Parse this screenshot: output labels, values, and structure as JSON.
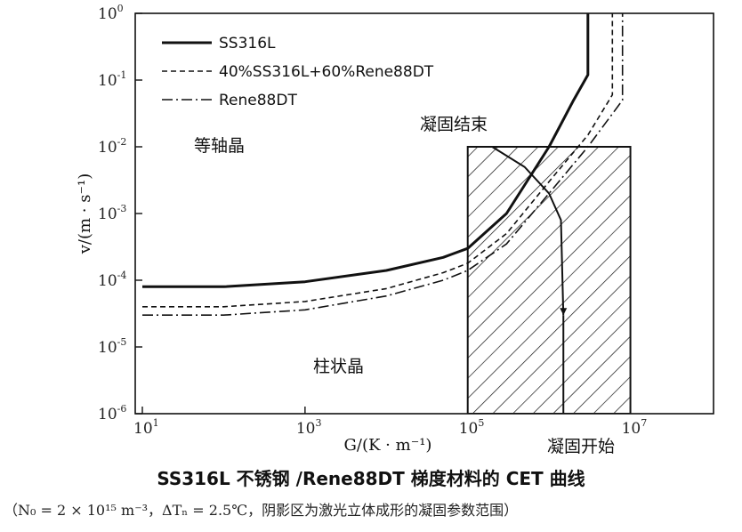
{
  "chart_data": {
    "type": "line",
    "x_scale": "log",
    "y_scale": "log",
    "xlim": [
      10,
      100000000.0
    ],
    "ylim": [
      1e-06,
      1
    ],
    "x_ticks": [
      {
        "value": 10,
        "base": "10",
        "exp": "1"
      },
      {
        "value": 1000,
        "base": "10",
        "exp": "3"
      },
      {
        "value": 100000,
        "base": "10",
        "exp": "5"
      },
      {
        "value": 10000000,
        "base": "10",
        "exp": "7"
      }
    ],
    "y_ticks": [
      {
        "value": 1e-06,
        "base": "10",
        "exp": "-6"
      },
      {
        "value": 1e-05,
        "base": "10",
        "exp": "-5"
      },
      {
        "value": 0.0001,
        "base": "10",
        "exp": "-4"
      },
      {
        "value": 0.001,
        "base": "10",
        "exp": "-3"
      },
      {
        "value": 0.01,
        "base": "10",
        "exp": "-2"
      },
      {
        "value": 0.1,
        "base": "10",
        "exp": "-1"
      },
      {
        "value": 1,
        "base": "10",
        "exp": "0"
      }
    ],
    "xlabel": "G/(K · m⁻¹)",
    "ylabel": "v/(m · s⁻¹)",
    "legend_position": "top-left",
    "series": [
      {
        "name": "SS316L",
        "style": "solid",
        "x": [
          10,
          100,
          1000,
          10000,
          50000,
          100000,
          300000,
          1000000,
          2000000,
          3000000,
          3000000
        ],
        "y": [
          8e-05,
          8e-05,
          9.5e-05,
          0.00014,
          0.00022,
          0.0003,
          0.001,
          0.01,
          0.05,
          0.12,
          1
        ]
      },
      {
        "name": "40%SS316L+60%Rene88DT",
        "style": "dashed",
        "x": [
          10,
          100,
          1000,
          10000,
          50000,
          100000,
          300000,
          1000000,
          3000000,
          6000000,
          6000000
        ],
        "y": [
          4e-05,
          4e-05,
          4.8e-05,
          7.5e-05,
          0.00013,
          0.00018,
          0.0005,
          0.003,
          0.015,
          0.06,
          1
        ]
      },
      {
        "name": "Rene88DT",
        "style": "dash-dot",
        "x": [
          10,
          100,
          1000,
          10000,
          50000,
          100000,
          300000,
          1000000,
          3000000,
          8000000,
          8000000
        ],
        "y": [
          3e-05,
          3e-05,
          3.6e-05,
          5.8e-05,
          0.0001,
          0.00014,
          0.00035,
          0.002,
          0.01,
          0.05,
          1
        ]
      }
    ],
    "solidification_end_curve": {
      "x": [
        200000,
        500000,
        1000000,
        1400000,
        1500000
      ],
      "y": [
        0.01,
        0.005,
        0.002,
        0.0008,
        3e-05
      ]
    },
    "solidification_start_line": {
      "x": [
        1500000,
        1500000
      ],
      "y": [
        3e-05,
        1e-06
      ]
    },
    "shaded_region": {
      "x": [
        100000,
        10000000
      ],
      "y": [
        1e-06,
        0.01
      ]
    },
    "annotations": {
      "equiaxed": "等轴晶",
      "columnar": "柱状晶",
      "solidification_end": "凝固结束",
      "solidification_start": "凝固开始"
    }
  },
  "caption": {
    "title": "SS316L 不锈钢 /Rene88DT 梯度材料的 CET 曲线",
    "note": "（N₀ = 2 × 10¹⁵ m⁻³，ΔTₙ = 2.5℃，阴影区为激光立体成形的凝固参数范围）"
  }
}
